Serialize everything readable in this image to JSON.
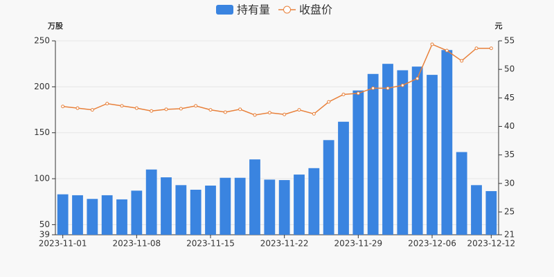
{
  "chart_data": {
    "type": "bar_line",
    "categories": [
      "2023-11-01",
      null,
      null,
      null,
      null,
      "2023-11-08",
      null,
      null,
      null,
      null,
      "2023-11-15",
      null,
      null,
      null,
      null,
      "2023-11-22",
      null,
      null,
      null,
      null,
      "2023-11-29",
      null,
      null,
      null,
      null,
      "2023-12-06",
      null,
      null,
      null,
      "2023-12-12"
    ],
    "y_label": "万股",
    "y2_label": "元",
    "ylim": [
      39,
      250
    ],
    "yticks": [
      39,
      50,
      100,
      150,
      200,
      250
    ],
    "y2lim": [
      21,
      55
    ],
    "y2ticks": [
      21,
      25,
      30,
      35,
      40,
      45,
      50,
      55
    ],
    "grid": true,
    "legend": "top",
    "series": [
      {
        "name": "持有量",
        "type": "bar",
        "color": "#3a84e0",
        "values": [
          83,
          82,
          78,
          82,
          77.5,
          87,
          110,
          101.5,
          93,
          88,
          92.5,
          101,
          101,
          121,
          99,
          98.5,
          104.5,
          111.5,
          142,
          162,
          196,
          214,
          225,
          218,
          222,
          213,
          240,
          129,
          93,
          86.5
        ]
      },
      {
        "name": "收盘价",
        "type": "line",
        "axis": "y2",
        "color": "#e8803a",
        "values": [
          43.5,
          43.2,
          42.9,
          44,
          43.6,
          43.2,
          42.7,
          43,
          43.1,
          43.6,
          42.9,
          42.5,
          43,
          42,
          42.4,
          42.1,
          42.9,
          42.2,
          44.3,
          45.6,
          45.8,
          46.7,
          46.7,
          47.2,
          48.4,
          54.4,
          53.3,
          51.5,
          53.7,
          53.7
        ]
      }
    ]
  }
}
